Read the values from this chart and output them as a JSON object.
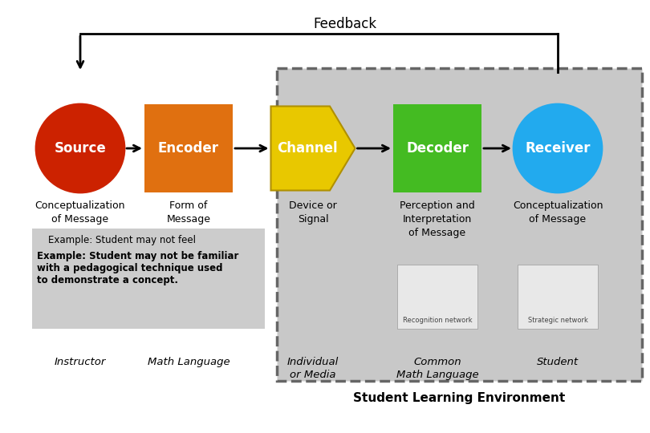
{
  "title": "Feedback",
  "bg_color": "#ffffff",
  "gray_box_color": "#c8c8c8",
  "source_color": "#cc2200",
  "encoder_color": "#e07010",
  "channel_color_outer": "#c8a000",
  "channel_color_inner": "#f0d000",
  "decoder_color": "#44bb22",
  "receiver_color": "#22aaee",
  "white_text": "#ffffff",
  "black_text": "#000000",
  "source_label": "Source",
  "encoder_label": "Encoder",
  "channel_label": "Channel",
  "decoder_label": "Decoder",
  "receiver_label": "Receiver",
  "source_sub": "Conceptualization\nof Message",
  "encoder_sub": "Form of\nMessage",
  "channel_sub": "Device or\nSignal",
  "decoder_sub": "Perception and\nInterpretation\nof Message",
  "receiver_sub": "Conceptualization\nof Message",
  "example_text1": "Example: Student may not feel",
  "example_text2": "Example: Student may not be familiar\nwith a pedagogical technique used\nto demonstrate a concept.",
  "instructor_label": "Instructor",
  "math_language_label": "Math Language",
  "individual_media_label": "Individual\nor Media",
  "common_math_label": "Common\nMath Language",
  "student_label": "Student",
  "sle_label": "Student Learning Environment",
  "recog_label": "Recognition network",
  "strat_label": "Strategic network"
}
